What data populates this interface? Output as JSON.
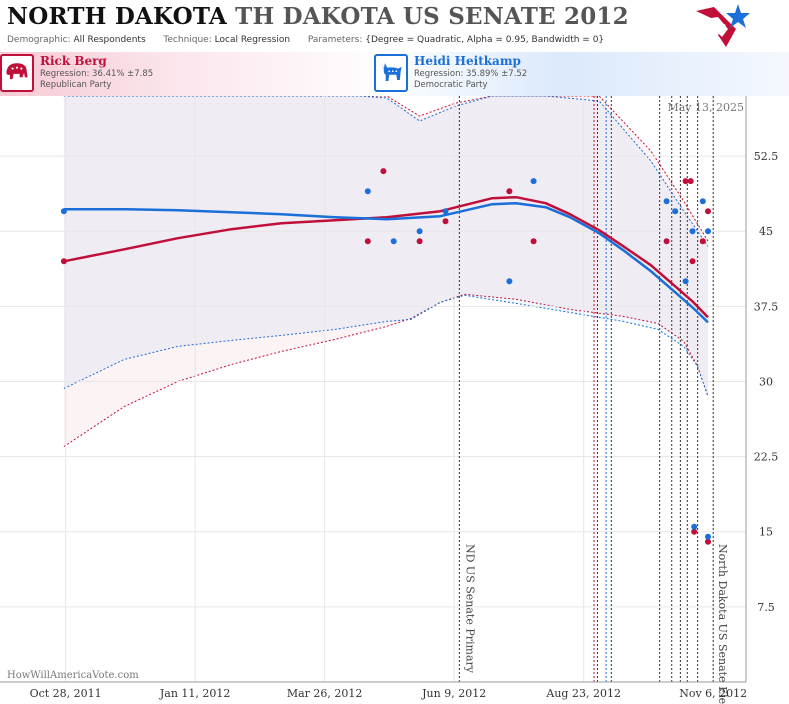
{
  "header": {
    "title_main": "NORTH DAKOTA",
    "title_sub": "TH DAKOTA US SENATE 2012",
    "demographic_label": "Demographic:",
    "demographic_value": "All Respondents",
    "technique_label": "Technique:",
    "technique_value": "Local Regression",
    "parameters_label": "Parameters:",
    "parameters_value": "{Degree = Quadratic, Alpha = 0.95, Bandwidth = 0}"
  },
  "candidates": [
    {
      "name": "Rick Berg",
      "regression": "Regression: 36.41% ±7.85",
      "party": "Republican Party",
      "color": "#c0103a"
    },
    {
      "name": "Heidi Heitkamp",
      "regression": "Regression: 35.89% ±7.52",
      "party": "Democratic Party",
      "color": "#1a6fd8"
    }
  ],
  "chart_data": {
    "type": "scatter",
    "date_label": "May 13, 2025",
    "watermark": "HowWillAmericaVote.com",
    "x_ticks": [
      "Oct 28, 2011",
      "Jan 11, 2012",
      "Mar 26, 2012",
      "Jun 9, 2012",
      "Aug 23, 2012",
      "Nov 6, 2012"
    ],
    "y_ticks": [
      7.5,
      15,
      22.5,
      30,
      37.5,
      45,
      52.5
    ],
    "ylim": [
      0,
      58.5
    ],
    "xlim": [
      "2011-09-20",
      "2012-11-25"
    ],
    "events": [
      {
        "label": "ND US Senate Primary",
        "date": "2012-06-12"
      },
      {
        "label": "North Dakota US Senate Election",
        "date": "2012-11-06"
      }
    ],
    "event_lines": [
      {
        "date": "2012-06-12",
        "color": "#333333"
      },
      {
        "date": "2012-08-29",
        "color": "#c0103a"
      },
      {
        "date": "2012-08-31",
        "color": "#333333"
      },
      {
        "date": "2012-09-05",
        "color": "#1a6fd8"
      },
      {
        "date": "2012-09-08",
        "color": "#333333"
      },
      {
        "date": "2012-10-06",
        "color": "#333333"
      },
      {
        "date": "2012-10-13",
        "color": "#333333"
      },
      {
        "date": "2012-10-18",
        "color": "#333333"
      },
      {
        "date": "2012-10-22",
        "color": "#333333"
      },
      {
        "date": "2012-10-28",
        "color": "#333333"
      },
      {
        "date": "2012-11-06",
        "color": "#333333"
      }
    ],
    "series": [
      {
        "name": "Rick Berg",
        "color": "#c0103a",
        "points": [
          [
            "2011-10-27",
            42
          ],
          [
            "2012-04-20",
            44
          ],
          [
            "2012-04-29",
            51
          ],
          [
            "2012-05-20",
            44
          ],
          [
            "2012-06-04",
            46
          ],
          [
            "2012-07-11",
            49
          ],
          [
            "2012-07-25",
            44
          ],
          [
            "2012-10-10",
            44
          ],
          [
            "2012-10-21",
            50
          ],
          [
            "2012-10-24",
            50
          ],
          [
            "2012-10-25",
            42
          ],
          [
            "2012-10-26",
            15
          ],
          [
            "2012-10-31",
            44
          ],
          [
            "2012-11-03",
            47
          ],
          [
            "2012-11-03",
            14
          ]
        ],
        "trend": [
          [
            "2011-10-27",
            42.0
          ],
          [
            "2011-12-01",
            43.2
          ],
          [
            "2012-01-01",
            44.3
          ],
          [
            "2012-02-01",
            45.2
          ],
          [
            "2012-03-01",
            45.8
          ],
          [
            "2012-04-01",
            46.1
          ],
          [
            "2012-05-01",
            46.4
          ],
          [
            "2012-06-01",
            47.0
          ],
          [
            "2012-07-01",
            48.3
          ],
          [
            "2012-07-15",
            48.4
          ],
          [
            "2012-08-01",
            47.8
          ],
          [
            "2012-08-15",
            46.7
          ],
          [
            "2012-09-01",
            45.1
          ],
          [
            "2012-09-15",
            43.5
          ],
          [
            "2012-10-01",
            41.6
          ],
          [
            "2012-10-15",
            39.5
          ],
          [
            "2012-10-25",
            38.0
          ],
          [
            "2012-11-03",
            36.4
          ]
        ],
        "upper": [
          [
            "2011-10-27",
            62
          ],
          [
            "2012-01-01",
            62
          ],
          [
            "2012-04-15",
            60.0
          ],
          [
            "2012-05-01",
            58.5
          ],
          [
            "2012-05-20",
            56.5
          ],
          [
            "2012-06-10",
            57.8
          ],
          [
            "2012-07-01",
            60.0
          ],
          [
            "2012-08-01",
            61.5
          ],
          [
            "2012-09-01",
            59.0
          ],
          [
            "2012-10-01",
            53.0
          ],
          [
            "2012-10-20",
            48.0
          ],
          [
            "2012-11-03",
            44.0
          ]
        ],
        "lower": [
          [
            "2011-10-27",
            23.5
          ],
          [
            "2011-12-01",
            27.5
          ],
          [
            "2012-01-01",
            30.0
          ],
          [
            "2012-02-01",
            31.7
          ],
          [
            "2012-03-01",
            33.0
          ],
          [
            "2012-04-01",
            34.2
          ],
          [
            "2012-05-01",
            35.5
          ],
          [
            "2012-05-15",
            36.3
          ],
          [
            "2012-06-01",
            37.9
          ],
          [
            "2012-06-15",
            38.7
          ],
          [
            "2012-07-15",
            38.2
          ],
          [
            "2012-08-15",
            37.2
          ],
          [
            "2012-09-15",
            36.5
          ],
          [
            "2012-10-05",
            35.8
          ],
          [
            "2012-10-20",
            34.0
          ],
          [
            "2012-10-28",
            31.5
          ],
          [
            "2012-11-03",
            28.5
          ]
        ]
      },
      {
        "name": "Heidi Heitkamp",
        "color": "#1a6fd8",
        "points": [
          [
            "2011-10-27",
            47
          ],
          [
            "2012-04-20",
            49
          ],
          [
            "2012-05-05",
            44
          ],
          [
            "2012-05-20",
            45
          ],
          [
            "2012-06-04",
            47
          ],
          [
            "2012-07-11",
            40
          ],
          [
            "2012-07-25",
            50
          ],
          [
            "2012-10-10",
            48
          ],
          [
            "2012-10-15",
            47
          ],
          [
            "2012-10-21",
            40
          ],
          [
            "2012-10-25",
            45
          ],
          [
            "2012-10-26",
            15.5
          ],
          [
            "2012-10-31",
            48
          ],
          [
            "2012-11-03",
            45
          ],
          [
            "2012-11-03",
            14.5
          ]
        ],
        "trend": [
          [
            "2011-10-27",
            47.2
          ],
          [
            "2011-12-01",
            47.2
          ],
          [
            "2012-01-01",
            47.1
          ],
          [
            "2012-02-01",
            46.9
          ],
          [
            "2012-03-01",
            46.7
          ],
          [
            "2012-04-01",
            46.4
          ],
          [
            "2012-05-01",
            46.2
          ],
          [
            "2012-06-01",
            46.5
          ],
          [
            "2012-07-01",
            47.7
          ],
          [
            "2012-07-15",
            47.8
          ],
          [
            "2012-08-01",
            47.4
          ],
          [
            "2012-08-15",
            46.4
          ],
          [
            "2012-09-01",
            44.8
          ],
          [
            "2012-09-15",
            43.1
          ],
          [
            "2012-10-01",
            41.0
          ],
          [
            "2012-10-15",
            38.9
          ],
          [
            "2012-10-25",
            37.4
          ],
          [
            "2012-11-03",
            35.9
          ]
        ],
        "upper": [
          [
            "2011-10-27",
            62
          ],
          [
            "2012-01-01",
            62
          ],
          [
            "2012-04-15",
            60.5
          ],
          [
            "2012-05-01",
            58.3
          ],
          [
            "2012-05-20",
            56.0
          ],
          [
            "2012-06-10",
            57.5
          ],
          [
            "2012-07-01",
            60.0
          ],
          [
            "2012-08-01",
            60.5
          ],
          [
            "2012-09-01",
            58.0
          ],
          [
            "2012-10-01",
            52.0
          ],
          [
            "2012-10-20",
            47.0
          ],
          [
            "2012-11-03",
            43.5
          ]
        ],
        "lower": [
          [
            "2011-10-27",
            29.3
          ],
          [
            "2011-12-01",
            32.2
          ],
          [
            "2012-01-01",
            33.5
          ],
          [
            "2012-02-01",
            34.1
          ],
          [
            "2012-03-01",
            34.6
          ],
          [
            "2012-04-01",
            35.2
          ],
          [
            "2012-05-01",
            36.0
          ],
          [
            "2012-05-15",
            36.2
          ],
          [
            "2012-06-01",
            37.9
          ],
          [
            "2012-06-15",
            38.6
          ],
          [
            "2012-07-15",
            37.8
          ],
          [
            "2012-08-15",
            36.9
          ],
          [
            "2012-09-15",
            36.0
          ],
          [
            "2012-10-05",
            35.2
          ],
          [
            "2012-10-20",
            33.5
          ],
          [
            "2012-10-28",
            31.5
          ],
          [
            "2012-11-03",
            28.5
          ]
        ]
      }
    ]
  }
}
